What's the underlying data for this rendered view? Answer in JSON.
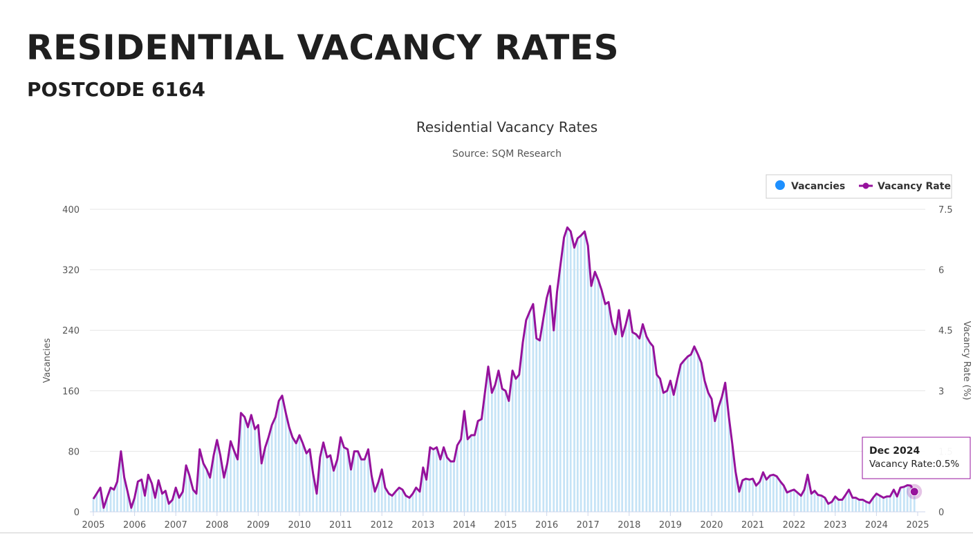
{
  "header": {
    "title": "RESIDENTIAL VACANCY RATES",
    "subtitle": "POSTCODE 6164"
  },
  "colors": {
    "vacancies": "#1e90ff",
    "vacancies_bar": "#c5e3f6",
    "vacancy_rate": "#96129c",
    "grid": "#e6e6e6",
    "text": "#333333"
  },
  "legend": {
    "items": [
      {
        "label": "Vacancies",
        "marker": "circle"
      },
      {
        "label": "Vacancy Rate",
        "marker": "line-dot"
      }
    ]
  },
  "tooltip": {
    "title": "Dec 2024",
    "label": "Vacancy Rate:",
    "value": "0.5%"
  },
  "chart_data": {
    "type": "bar+line",
    "title": "Residential Vacancy Rates",
    "subtitle": "Source: SQM Research",
    "ylabel": "Vacancies",
    "y2label": "Vacancy Rate (%)",
    "ylim": [
      0,
      400
    ],
    "y2lim": [
      0,
      7.5
    ],
    "y_ticks": [
      "0",
      "80",
      "160",
      "240",
      "320",
      "400"
    ],
    "y2_ticks": [
      "0",
      "1.5",
      "3",
      "4.5",
      "6",
      "7.5"
    ],
    "x_ticks": [
      "2005",
      "2006",
      "2007",
      "2008",
      "2009",
      "2010",
      "2011",
      "2012",
      "2013",
      "2014",
      "2015",
      "2016",
      "2017",
      "2018",
      "2019",
      "2020",
      "2021",
      "2022",
      "2023",
      "2024",
      "2025"
    ],
    "x_start": 2005.0,
    "x_end": 2025.0,
    "bar_scale": 53.3,
    "vacancy_rate_points": [
      [
        2005.0,
        0.32
      ],
      [
        2005.08,
        0.45
      ],
      [
        2005.17,
        0.6
      ],
      [
        2005.25,
        0.1
      ],
      [
        2005.33,
        0.35
      ],
      [
        2005.42,
        0.6
      ],
      [
        2005.5,
        0.55
      ],
      [
        2005.58,
        0.75
      ],
      [
        2005.67,
        1.5
      ],
      [
        2005.75,
        0.85
      ],
      [
        2005.83,
        0.5
      ],
      [
        2005.92,
        0.1
      ],
      [
        2006.0,
        0.35
      ],
      [
        2006.08,
        0.75
      ],
      [
        2006.17,
        0.8
      ],
      [
        2006.25,
        0.4
      ],
      [
        2006.33,
        0.92
      ],
      [
        2006.42,
        0.7
      ],
      [
        2006.5,
        0.35
      ],
      [
        2006.58,
        0.78
      ],
      [
        2006.67,
        0.45
      ],
      [
        2006.75,
        0.52
      ],
      [
        2006.83,
        0.2
      ],
      [
        2006.92,
        0.3
      ],
      [
        2007.0,
        0.6
      ],
      [
        2007.08,
        0.35
      ],
      [
        2007.17,
        0.5
      ],
      [
        2007.25,
        1.15
      ],
      [
        2007.33,
        0.9
      ],
      [
        2007.42,
        0.55
      ],
      [
        2007.5,
        0.45
      ],
      [
        2007.58,
        1.55
      ],
      [
        2007.67,
        1.2
      ],
      [
        2007.75,
        1.05
      ],
      [
        2007.83,
        0.85
      ],
      [
        2007.92,
        1.4
      ],
      [
        2008.0,
        1.78
      ],
      [
        2008.08,
        1.4
      ],
      [
        2008.17,
        0.85
      ],
      [
        2008.25,
        1.2
      ],
      [
        2008.33,
        1.75
      ],
      [
        2008.42,
        1.5
      ],
      [
        2008.5,
        1.3
      ],
      [
        2008.58,
        2.45
      ],
      [
        2008.67,
        2.35
      ],
      [
        2008.75,
        2.1
      ],
      [
        2008.83,
        2.4
      ],
      [
        2008.92,
        2.05
      ],
      [
        2009.0,
        2.15
      ],
      [
        2009.08,
        1.2
      ],
      [
        2009.17,
        1.6
      ],
      [
        2009.25,
        1.85
      ],
      [
        2009.33,
        2.15
      ],
      [
        2009.42,
        2.35
      ],
      [
        2009.5,
        2.75
      ],
      [
        2009.58,
        2.88
      ],
      [
        2009.67,
        2.45
      ],
      [
        2009.75,
        2.1
      ],
      [
        2009.83,
        1.85
      ],
      [
        2009.92,
        1.7
      ],
      [
        2010.0,
        1.9
      ],
      [
        2010.08,
        1.7
      ],
      [
        2010.17,
        1.45
      ],
      [
        2010.25,
        1.55
      ],
      [
        2010.33,
        0.95
      ],
      [
        2010.42,
        0.45
      ],
      [
        2010.5,
        1.35
      ],
      [
        2010.58,
        1.72
      ],
      [
        2010.67,
        1.35
      ],
      [
        2010.75,
        1.4
      ],
      [
        2010.83,
        1.02
      ],
      [
        2010.92,
        1.3
      ],
      [
        2011.0,
        1.85
      ],
      [
        2011.08,
        1.6
      ],
      [
        2011.17,
        1.55
      ],
      [
        2011.25,
        1.05
      ],
      [
        2011.33,
        1.5
      ],
      [
        2011.42,
        1.5
      ],
      [
        2011.5,
        1.3
      ],
      [
        2011.58,
        1.3
      ],
      [
        2011.67,
        1.55
      ],
      [
        2011.75,
        0.9
      ],
      [
        2011.83,
        0.5
      ],
      [
        2011.92,
        0.75
      ],
      [
        2012.0,
        1.05
      ],
      [
        2012.08,
        0.6
      ],
      [
        2012.17,
        0.45
      ],
      [
        2012.25,
        0.4
      ],
      [
        2012.33,
        0.5
      ],
      [
        2012.42,
        0.6
      ],
      [
        2012.5,
        0.55
      ],
      [
        2012.58,
        0.4
      ],
      [
        2012.67,
        0.35
      ],
      [
        2012.75,
        0.45
      ],
      [
        2012.83,
        0.6
      ],
      [
        2012.92,
        0.5
      ],
      [
        2013.0,
        1.1
      ],
      [
        2013.08,
        0.8
      ],
      [
        2013.17,
        1.6
      ],
      [
        2013.25,
        1.55
      ],
      [
        2013.33,
        1.6
      ],
      [
        2013.42,
        1.3
      ],
      [
        2013.5,
        1.6
      ],
      [
        2013.58,
        1.35
      ],
      [
        2013.67,
        1.25
      ],
      [
        2013.75,
        1.25
      ],
      [
        2013.83,
        1.65
      ],
      [
        2013.92,
        1.8
      ],
      [
        2014.0,
        2.5
      ],
      [
        2014.08,
        1.8
      ],
      [
        2014.17,
        1.9
      ],
      [
        2014.25,
        1.9
      ],
      [
        2014.33,
        2.25
      ],
      [
        2014.42,
        2.3
      ],
      [
        2014.5,
        2.95
      ],
      [
        2014.58,
        3.6
      ],
      [
        2014.67,
        2.95
      ],
      [
        2014.75,
        3.15
      ],
      [
        2014.83,
        3.5
      ],
      [
        2014.92,
        3.05
      ],
      [
        2015.0,
        3.0
      ],
      [
        2015.08,
        2.75
      ],
      [
        2015.17,
        3.5
      ],
      [
        2015.25,
        3.3
      ],
      [
        2015.33,
        3.4
      ],
      [
        2015.42,
        4.2
      ],
      [
        2015.5,
        4.75
      ],
      [
        2015.58,
        4.95
      ],
      [
        2015.67,
        5.15
      ],
      [
        2015.75,
        4.3
      ],
      [
        2015.83,
        4.25
      ],
      [
        2015.92,
        4.8
      ],
      [
        2016.0,
        5.3
      ],
      [
        2016.08,
        5.6
      ],
      [
        2016.17,
        4.5
      ],
      [
        2016.25,
        5.45
      ],
      [
        2016.33,
        6.1
      ],
      [
        2016.42,
        6.8
      ],
      [
        2016.5,
        7.05
      ],
      [
        2016.58,
        6.95
      ],
      [
        2016.67,
        6.55
      ],
      [
        2016.75,
        6.78
      ],
      [
        2016.83,
        6.85
      ],
      [
        2016.92,
        6.95
      ],
      [
        2017.0,
        6.6
      ],
      [
        2017.08,
        5.6
      ],
      [
        2017.17,
        5.95
      ],
      [
        2017.25,
        5.75
      ],
      [
        2017.33,
        5.5
      ],
      [
        2017.42,
        5.15
      ],
      [
        2017.5,
        5.2
      ],
      [
        2017.58,
        4.7
      ],
      [
        2017.67,
        4.4
      ],
      [
        2017.75,
        5.0
      ],
      [
        2017.83,
        4.35
      ],
      [
        2017.92,
        4.65
      ],
      [
        2018.0,
        5.0
      ],
      [
        2018.08,
        4.45
      ],
      [
        2018.17,
        4.4
      ],
      [
        2018.25,
        4.3
      ],
      [
        2018.33,
        4.65
      ],
      [
        2018.42,
        4.35
      ],
      [
        2018.5,
        4.2
      ],
      [
        2018.58,
        4.1
      ],
      [
        2018.67,
        3.4
      ],
      [
        2018.75,
        3.3
      ],
      [
        2018.83,
        2.95
      ],
      [
        2018.92,
        3.0
      ],
      [
        2019.0,
        3.25
      ],
      [
        2019.08,
        2.9
      ],
      [
        2019.17,
        3.3
      ],
      [
        2019.25,
        3.65
      ],
      [
        2019.33,
        3.75
      ],
      [
        2019.42,
        3.85
      ],
      [
        2019.5,
        3.9
      ],
      [
        2019.58,
        4.1
      ],
      [
        2019.67,
        3.9
      ],
      [
        2019.75,
        3.7
      ],
      [
        2019.83,
        3.25
      ],
      [
        2019.92,
        2.95
      ],
      [
        2020.0,
        2.8
      ],
      [
        2020.08,
        2.25
      ],
      [
        2020.17,
        2.6
      ],
      [
        2020.25,
        2.85
      ],
      [
        2020.33,
        3.2
      ],
      [
        2020.42,
        2.35
      ],
      [
        2020.5,
        1.7
      ],
      [
        2020.58,
        1.0
      ],
      [
        2020.67,
        0.5
      ],
      [
        2020.75,
        0.78
      ],
      [
        2020.83,
        0.82
      ],
      [
        2020.92,
        0.8
      ],
      [
        2021.0,
        0.82
      ],
      [
        2021.08,
        0.65
      ],
      [
        2021.17,
        0.75
      ],
      [
        2021.25,
        0.98
      ],
      [
        2021.33,
        0.8
      ],
      [
        2021.42,
        0.9
      ],
      [
        2021.5,
        0.92
      ],
      [
        2021.58,
        0.88
      ],
      [
        2021.67,
        0.75
      ],
      [
        2021.75,
        0.65
      ],
      [
        2021.83,
        0.48
      ],
      [
        2021.92,
        0.52
      ],
      [
        2022.0,
        0.55
      ],
      [
        2022.08,
        0.48
      ],
      [
        2022.17,
        0.4
      ],
      [
        2022.25,
        0.55
      ],
      [
        2022.33,
        0.92
      ],
      [
        2022.42,
        0.45
      ],
      [
        2022.5,
        0.52
      ],
      [
        2022.58,
        0.42
      ],
      [
        2022.67,
        0.4
      ],
      [
        2022.75,
        0.35
      ],
      [
        2022.83,
        0.2
      ],
      [
        2022.92,
        0.25
      ],
      [
        2023.0,
        0.38
      ],
      [
        2023.08,
        0.3
      ],
      [
        2023.17,
        0.3
      ],
      [
        2023.25,
        0.42
      ],
      [
        2023.33,
        0.55
      ],
      [
        2023.42,
        0.35
      ],
      [
        2023.5,
        0.35
      ],
      [
        2023.58,
        0.3
      ],
      [
        2023.67,
        0.3
      ],
      [
        2023.75,
        0.25
      ],
      [
        2023.83,
        0.22
      ],
      [
        2023.92,
        0.35
      ],
      [
        2024.0,
        0.45
      ],
      [
        2024.08,
        0.4
      ],
      [
        2024.17,
        0.35
      ],
      [
        2024.25,
        0.38
      ],
      [
        2024.33,
        0.38
      ],
      [
        2024.42,
        0.55
      ],
      [
        2024.5,
        0.38
      ],
      [
        2024.58,
        0.6
      ],
      [
        2024.67,
        0.62
      ],
      [
        2024.75,
        0.66
      ],
      [
        2024.83,
        0.65
      ],
      [
        2024.92,
        0.5
      ]
    ],
    "highlight": {
      "x": 2024.92,
      "y": 0.5,
      "label": "Dec 2024"
    }
  }
}
